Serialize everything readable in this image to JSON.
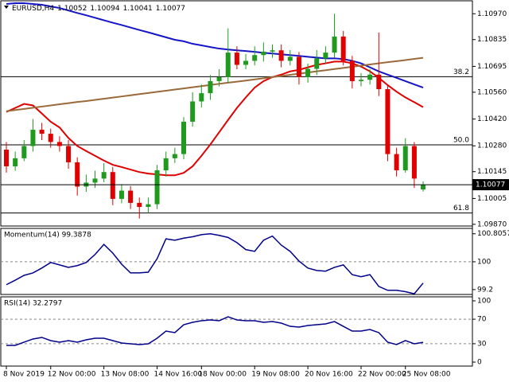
{
  "chart_data": [
    {
      "type": "candlestick",
      "symbol": "EURUSD,H4",
      "categories": [
        "8 Nov 2019",
        null,
        null,
        null,
        null,
        "12 Nov 00:00",
        null,
        null,
        null,
        null,
        null,
        "13 Nov 08:00",
        null,
        null,
        null,
        null,
        null,
        "14 Nov 16:00",
        null,
        null,
        null,
        null,
        "18 Nov 00:00",
        null,
        null,
        null,
        null,
        null,
        "19 Nov 08:00",
        null,
        null,
        null,
        null,
        null,
        "20 Nov 16:00",
        null,
        null,
        null,
        null,
        null,
        "22 Nov 00:00",
        null,
        null,
        null,
        null,
        "25 Nov 08:00",
        null,
        null
      ],
      "open": [
        1.1026,
        1.10173,
        1.10215,
        1.10279,
        1.10364,
        1.10343,
        1.103,
        1.10279,
        1.10194,
        1.10067,
        1.10088,
        1.10109,
        1.10143,
        1.10003,
        1.10046,
        1.09982,
        1.09961,
        1.09975,
        1.10152,
        1.10215,
        1.10237,
        1.10406,
        1.10512,
        1.10555,
        1.10618,
        1.10639,
        1.10767,
        1.10703,
        1.10724,
        1.10754,
        1.10772,
        1.10779,
        1.10724,
        1.10745,
        1.10639,
        1.10682,
        1.10737,
        1.10767,
        1.10851,
        1.10724,
        1.10618,
        1.10625,
        1.10652,
        1.10576,
        1.10237,
        1.10152,
        1.10279,
        1.10052
      ],
      "high": [
        1.103,
        1.1025,
        1.1031,
        1.1042,
        1.104,
        1.1037,
        1.1033,
        1.1031,
        1.1022,
        1.1013,
        1.1015,
        1.1019,
        1.1017,
        1.1008,
        1.1007,
        1.1001,
        1.1001,
        1.1018,
        1.1025,
        1.1027,
        1.1043,
        1.1056,
        1.106,
        1.1065,
        1.1068,
        1.10894,
        1.108,
        1.1076,
        1.108,
        1.1082,
        1.1081,
        1.1081,
        1.1078,
        1.1077,
        1.1071,
        1.1078,
        1.108,
        1.1097,
        1.1088,
        1.1075,
        1.1066,
        1.1068,
        1.10872,
        1.106,
        1.1027,
        1.1032,
        1.103,
        1.10094
      ],
      "low": [
        1.1014,
        1.1015,
        1.102,
        1.1025,
        1.1031,
        1.1027,
        1.1025,
        1.1016,
        1.1002,
        1.1004,
        1.1006,
        1.1009,
        1.0997,
        1.0998,
        1.0995,
        1.099,
        1.0993,
        1.0995,
        1.1012,
        1.1019,
        1.1021,
        1.1038,
        1.1048,
        1.1052,
        1.1059,
        1.1061,
        1.1068,
        1.1068,
        1.107,
        1.1072,
        1.1074,
        1.1069,
        1.107,
        1.106,
        1.1061,
        1.1065,
        1.1071,
        1.1074,
        1.107,
        1.1058,
        1.1059,
        1.106,
        1.1054,
        1.102,
        1.1012,
        1.1014,
        1.1006,
        1.10041
      ],
      "close": [
        1.10173,
        1.10215,
        1.10279,
        1.10364,
        1.10343,
        1.103,
        1.10279,
        1.10194,
        1.10067,
        1.10088,
        1.10109,
        1.10143,
        1.10003,
        1.10046,
        1.09982,
        1.09961,
        1.09975,
        1.10152,
        1.10215,
        1.10237,
        1.10406,
        1.10512,
        1.10555,
        1.10618,
        1.10639,
        1.10767,
        1.10703,
        1.10724,
        1.10754,
        1.10772,
        1.10779,
        1.10724,
        1.10745,
        1.10639,
        1.10682,
        1.10737,
        1.10767,
        1.10851,
        1.10724,
        1.10618,
        1.10625,
        1.10652,
        1.10576,
        1.10237,
        1.10152,
        1.10279,
        1.10109,
        1.10077
      ],
      "colors": {
        "up": "#1f9a1f",
        "down": "#e00000",
        "last_price": "#000000"
      },
      "moving_averages": [
        {
          "color": "#e00000",
          "values": [
            1.10457,
            1.10478,
            1.10499,
            1.10491,
            1.10449,
            1.10406,
            1.10376,
            1.10321,
            1.10279,
            1.10253,
            1.10228,
            1.10203,
            1.10181,
            1.10169,
            1.10156,
            1.10143,
            1.10135,
            1.10131,
            1.10126,
            1.10126,
            1.10139,
            1.10173,
            1.10228,
            1.10287,
            1.10351,
            1.10415,
            1.10478,
            1.10533,
            1.10584,
            1.10618,
            1.10639,
            1.10652,
            1.10669,
            1.10677,
            1.1069,
            1.10703,
            1.10711,
            1.1072,
            1.1072,
            1.10711,
            1.10694,
            1.10669,
            1.10635,
            1.10597,
            1.10563,
            1.10533,
            1.10508,
            1.10482
          ]
        },
        {
          "color": "#1515c8",
          "values": [
            1.11021,
            1.11025,
            1.11025,
            1.11021,
            1.11017,
            1.11008,
            1.11,
            1.10987,
            1.10974,
            1.10962,
            1.10949,
            1.10936,
            1.10923,
            1.10911,
            1.10898,
            1.10885,
            1.10873,
            1.1086,
            1.10847,
            1.10834,
            1.10826,
            1.10813,
            1.10805,
            1.10796,
            1.10788,
            1.10783,
            1.10779,
            1.10775,
            1.10771,
            1.10766,
            1.10762,
            1.10758,
            1.10754,
            1.1075,
            1.10745,
            1.10741,
            1.10737,
            1.10737,
            1.10733,
            1.10724,
            1.10711,
            1.1069,
            1.10669,
            1.10652,
            1.10635,
            1.10618,
            1.10601,
            1.10584
          ]
        },
        {
          "color": "#9a6a3a",
          "values": [
            1.10461,
            1.10467,
            1.10473,
            1.10479,
            1.10485,
            1.10491,
            1.10497,
            1.10503,
            1.10509,
            1.10514,
            1.1052,
            1.10526,
            1.10532,
            1.10538,
            1.10544,
            1.1055,
            1.10556,
            1.10562,
            1.10568,
            1.10574,
            1.1058,
            1.10586,
            1.10592,
            1.10598,
            1.10604,
            1.1061,
            1.10615,
            1.10621,
            1.10627,
            1.10633,
            1.10639,
            1.10645,
            1.10651,
            1.10657,
            1.10663,
            1.10669,
            1.10675,
            1.10681,
            1.10687,
            1.10693,
            1.10699,
            1.10705,
            1.10711,
            1.10717,
            1.10722,
            1.10728,
            1.10734,
            1.1074
          ]
        }
      ],
      "fib_levels": [
        {
          "label": "38.2",
          "value": 1.10641
        },
        {
          "label": "50.0",
          "value": 1.10285
        },
        {
          "label": "61.8",
          "value": 1.09929
        }
      ],
      "ylim": [
        1.09857,
        1.11021
      ],
      "yticks": [
        {
          "value": 1.0987,
          "label": "1.09870"
        },
        1.10005,
        1.10145,
        {
          "value": 1.1028,
          "label": "1.10280"
        },
        {
          "value": 1.1042,
          "label": "1.10420"
        },
        {
          "value": 1.1056,
          "label": "1.10560"
        },
        1.10695,
        1.10835,
        {
          "value": 1.1097,
          "label": "1.10970"
        }
      ]
    },
    {
      "type": "line",
      "title": "Momentum(14) 99.3878",
      "color": "#00008b",
      "values": [
        99.34,
        99.47,
        99.61,
        99.68,
        99.82,
        99.98,
        99.91,
        99.84,
        99.89,
        99.98,
        100.21,
        100.5,
        100.25,
        99.93,
        99.68,
        99.68,
        99.7,
        100.09,
        100.66,
        100.62,
        100.68,
        100.72,
        100.78,
        100.8057,
        100.76,
        100.7,
        100.55,
        100.35,
        100.3,
        100.62,
        100.74,
        100.48,
        100.3,
        100.02,
        99.82,
        99.75,
        99.73,
        99.84,
        99.91,
        99.63,
        99.57,
        99.63,
        99.29,
        99.18,
        99.18,
        99.14,
        99.08,
        99.3878
      ],
      "ylim": [
        99.06,
        100.96
      ],
      "yticks": [
        99.2,
        100,
        100.8057
      ],
      "reference_lines": [
        100
      ]
    },
    {
      "type": "line",
      "title": "RSI(14) 32.2797",
      "color": "#00008b",
      "values": [
        27.3,
        27.3,
        32.5,
        37.7,
        40.3,
        35.1,
        32.5,
        35.1,
        32.5,
        36.4,
        39,
        39,
        35.1,
        31.2,
        29.9,
        28.6,
        29.9,
        39,
        50.6,
        48.1,
        61,
        64.9,
        67.5,
        68.8,
        67.5,
        74,
        68.8,
        67.5,
        67.5,
        64.9,
        66.2,
        63.6,
        58.4,
        57.1,
        59.7,
        61,
        62.3,
        66.2,
        58.4,
        50.6,
        50.6,
        53.2,
        48.1,
        32.5,
        28.6,
        35.1,
        29.9,
        32.2797
      ],
      "ylim": [
        -6.5,
        106.5
      ],
      "yticks": [
        0,
        30,
        70,
        100
      ],
      "reference_lines": [
        30,
        70
      ]
    }
  ]
}
